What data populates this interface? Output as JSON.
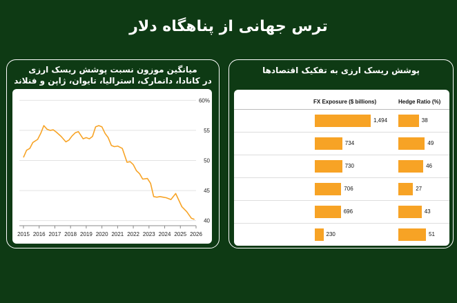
{
  "title": "ترس جهانی از پناهگاه دلار",
  "left_panel": {
    "title_line1": "میانگین موزون نسبت پوشش ریسک ارزی",
    "title_line2": "در کانادا، دانمارک، استرالیا، تایوان، ژاپن و فنلاند"
  },
  "right_panel": {
    "title": "پوشش ریسک ارزی به تفکیک اقتصادها"
  },
  "chart_data": [
    {
      "type": "line",
      "title": "",
      "xlabel": "",
      "ylabel": "",
      "y_tick_labels": [
        "60%",
        "55",
        "50",
        "45",
        "40"
      ],
      "y_ticks": [
        60,
        55,
        50,
        45,
        40
      ],
      "ylim": [
        39.5,
        60.5
      ],
      "x_tick_labels": [
        "2015",
        "2016",
        "2017",
        "2018",
        "2019",
        "2020",
        "2021",
        "2022",
        "2023",
        "2024",
        "2025",
        "2026"
      ],
      "xlim": [
        2015,
        2026
      ],
      "grid": true,
      "color": "#f7a325",
      "x": [
        2015.0,
        2015.2,
        2015.4,
        2015.6,
        2015.9,
        2016.1,
        2016.3,
        2016.5,
        2016.7,
        2016.9,
        2017.1,
        2017.4,
        2017.7,
        2017.9,
        2018.1,
        2018.3,
        2018.5,
        2018.8,
        2019.0,
        2019.2,
        2019.4,
        2019.6,
        2019.8,
        2020.0,
        2020.2,
        2020.4,
        2020.6,
        2020.8,
        2021.0,
        2021.3,
        2021.6,
        2021.8,
        2022.0,
        2022.2,
        2022.4,
        2022.6,
        2022.9,
        2023.1,
        2023.3,
        2023.5,
        2023.7,
        2023.9,
        2024.1,
        2024.4,
        2024.7,
        2024.9,
        2025.1,
        2025.4,
        2025.7,
        2025.9
      ],
      "y": [
        50.5,
        51.7,
        52.0,
        53.0,
        53.5,
        54.5,
        55.8,
        55.2,
        55.0,
        55.1,
        54.7,
        54.0,
        53.1,
        53.4,
        54.1,
        54.6,
        54.8,
        53.6,
        53.8,
        53.6,
        54.0,
        55.6,
        55.8,
        55.6,
        54.5,
        53.8,
        52.5,
        52.3,
        52.4,
        52.0,
        49.7,
        49.8,
        49.3,
        48.3,
        47.8,
        46.9,
        47.0,
        46.2,
        44.0,
        43.9,
        44.0,
        43.9,
        43.8,
        43.5,
        44.5,
        43.4,
        42.3,
        41.5,
        40.4,
        40.2
      ]
    },
    {
      "type": "bar",
      "title": "",
      "series": [
        {
          "name": "FX Exposure ($ billions)",
          "values": [
            1494,
            734,
            730,
            706,
            696,
            230
          ],
          "labels": [
            "1,494",
            "734",
            "730",
            "706",
            "696",
            "230"
          ]
        },
        {
          "name": "Hedge Ratio (%)",
          "values": [
            38,
            49,
            46,
            27,
            43,
            51
          ],
          "labels": [
            "38",
            "49",
            "46",
            "27",
            "43",
            "51"
          ]
        }
      ],
      "color": "#f7a325"
    }
  ]
}
